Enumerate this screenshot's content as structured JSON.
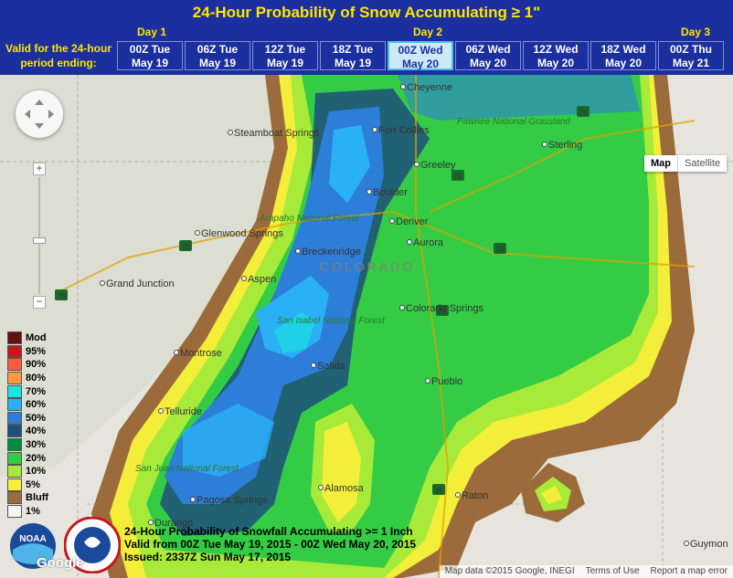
{
  "header": {
    "title": "24-Hour Probability of Snow Accumulating ≥ 1\"",
    "days": [
      "Day 1",
      "Day 2",
      "Day 3"
    ],
    "valid_label": "Valid for the 24-hour period ending:",
    "periods": [
      {
        "label": "00Z Tue May 19",
        "active": false
      },
      {
        "label": "06Z Tue May 19",
        "active": false
      },
      {
        "label": "12Z Tue May 19",
        "active": false
      },
      {
        "label": "18Z Tue May 19",
        "active": false
      },
      {
        "label": "00Z Wed May 20",
        "active": true
      },
      {
        "label": "06Z Wed May 20",
        "active": false
      },
      {
        "label": "12Z Wed May 20",
        "active": false
      },
      {
        "label": "18Z Wed May 20",
        "active": false
      },
      {
        "label": "00Z Thu May 21",
        "active": false
      }
    ]
  },
  "map_controls": {
    "map": "Map",
    "satellite": "Satellite",
    "zoom_in": "+",
    "zoom_out": "−"
  },
  "map_labels": {
    "cities": [
      "Cheyenne",
      "Fort Collins",
      "Greeley",
      "Sterling",
      "Boulder",
      "Denver",
      "Aurora",
      "Colorado Springs",
      "Pueblo",
      "Grand Junction",
      "Glenwood Springs",
      "Steamboat Springs",
      "Aspen",
      "Breckenridge",
      "Montrose",
      "Telluride",
      "Salida",
      "Alamosa",
      "Durango",
      "Pagosa Springs",
      "Raton",
      "Guymon"
    ],
    "regions": [
      "COLORADO",
      "Pawnee National Grassland",
      "Arapaho National Forest",
      "San Isabel National Forest",
      "San Juan National Forest"
    ],
    "highways": [
      "70",
      "76",
      "25",
      "25"
    ]
  },
  "legend": [
    {
      "label": "Mod",
      "color": "#6a0d0d"
    },
    {
      "label": "95%",
      "color": "#c8141e"
    },
    {
      "label": "90%",
      "color": "#ff5a3c"
    },
    {
      "label": "80%",
      "color": "#ff9a3c"
    },
    {
      "label": "70%",
      "color": "#19e8e0"
    },
    {
      "label": "60%",
      "color": "#2ab0f5"
    },
    {
      "label": "50%",
      "color": "#2d7ed8"
    },
    {
      "label": "40%",
      "color": "#1e4e7c"
    },
    {
      "label": "30%",
      "color": "#008c3c"
    },
    {
      "label": "20%",
      "color": "#33cc44"
    },
    {
      "label": "10%",
      "color": "#a8ea3a"
    },
    {
      "label": "5%",
      "color": "#f2ee3a"
    },
    {
      "label": "Bluff",
      "color": "#9c6b3c"
    },
    {
      "label": "1%",
      "color": "#f5f5f5"
    }
  ],
  "caption": {
    "line1": "24-Hour Probability of Snowfall Accumulating >= 1 Inch",
    "line2": "Valid from 00Z Tue May 19, 2015 - 00Z Wed May 20, 2015",
    "line3": "Issued: 2337Z Sun May 17, 2015"
  },
  "footer": {
    "data": "Map data ©2015 Google, INEGI",
    "terms": "Terms of Use",
    "report": "Report a map error"
  },
  "google_logo": "Google",
  "logos": [
    "NOAA",
    "National Weather Service"
  ]
}
